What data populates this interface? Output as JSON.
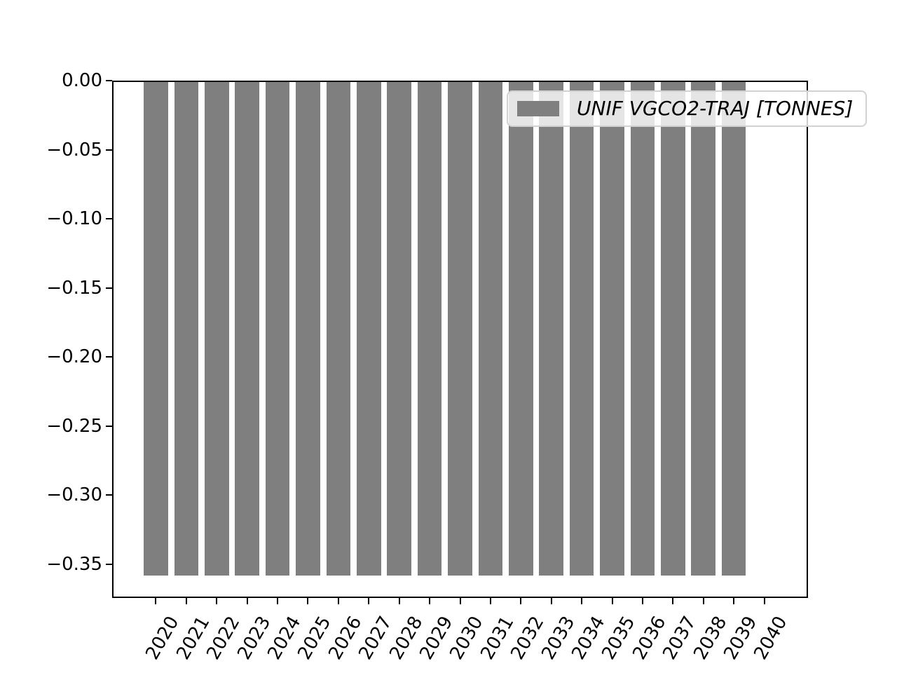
{
  "figure": {
    "background": "#ffffff",
    "axis_color": "#000000"
  },
  "chart_data": {
    "type": "bar",
    "title": "",
    "xlabel": "",
    "ylabel": "",
    "categories": [
      "2020",
      "2021",
      "2022",
      "2023",
      "2024",
      "2025",
      "2026",
      "2027",
      "2028",
      "2029",
      "2030",
      "2031",
      "2032",
      "2033",
      "2034",
      "2035",
      "2036",
      "2037",
      "2038",
      "2039",
      "2040"
    ],
    "values": [
      -0.357,
      -0.357,
      -0.357,
      -0.357,
      -0.357,
      -0.357,
      -0.357,
      -0.357,
      -0.357,
      -0.357,
      -0.357,
      -0.357,
      -0.357,
      -0.357,
      -0.357,
      -0.357,
      -0.357,
      -0.357,
      -0.357,
      -0.357,
      null
    ],
    "legend": [
      "UNIF VGCO2-TRAJ [TONNES]"
    ],
    "legend_position": "upper right",
    "bar_color": "#7f7f7f",
    "bar_width_fraction": 0.8,
    "x_tick_rotation_deg": 60,
    "xlim": [
      2018.56,
      2041.44
    ],
    "ylim": [
      -0.3744,
      0
    ],
    "grid": false,
    "yticks": [
      {
        "label": "0.00",
        "value": 0
      },
      {
        "label": "−0.05",
        "value": -0.05
      },
      {
        "label": "−0.10",
        "value": -0.1
      },
      {
        "label": "−0.15",
        "value": -0.15
      },
      {
        "label": "−0.20",
        "value": -0.2
      },
      {
        "label": "−0.25",
        "value": -0.25
      },
      {
        "label": "−0.30",
        "value": -0.3
      },
      {
        "label": "−0.35",
        "value": -0.35
      }
    ]
  }
}
